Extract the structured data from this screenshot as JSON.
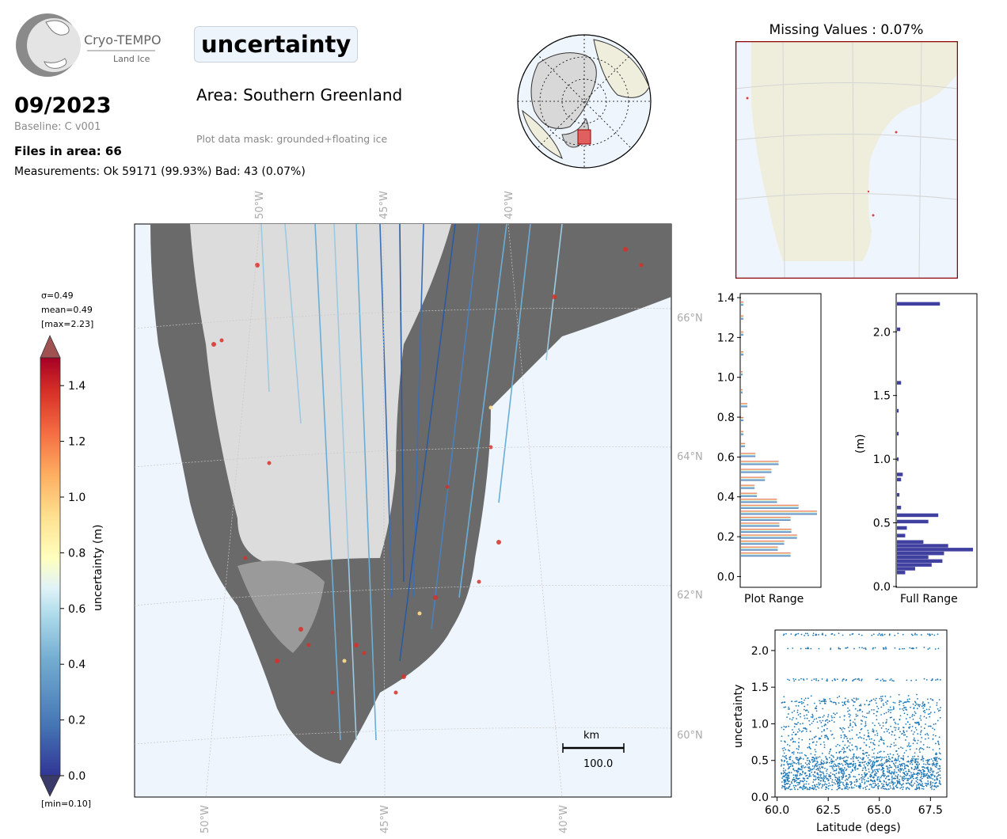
{
  "header": {
    "title": "uncertainty",
    "date": "09/2023",
    "baseline": "Baseline: C v001",
    "files": "Files in area: 66",
    "measurements": "Measurements: Ok 59171 (99.93%) Bad: 43 (0.07%)",
    "area": "Area: Southern Greenland",
    "mask": "Plot data mask: grounded+floating ice"
  },
  "logo": {
    "name": "Cryo-TEMPO",
    "sub": "Land Ice"
  },
  "inset": {
    "missing_title": "Missing Values : 0.07%"
  },
  "map": {
    "lon_labels": [
      "50°W",
      "45°W",
      "40°W"
    ],
    "lat_labels": [
      "66°N",
      "64°N",
      "62°N",
      "60°N"
    ],
    "scalebar_unit": "km",
    "scalebar_value": "100.0"
  },
  "colorbar": {
    "label": "uncertainty (m)",
    "stats": [
      "σ=0.49",
      "mean=0.49",
      "[max=2.23]"
    ],
    "min_label": "[min=0.10]",
    "ticks": [
      "0.0",
      "0.2",
      "0.4",
      "0.6",
      "0.8",
      "1.0",
      "1.2",
      "1.4"
    ]
  },
  "colors": {
    "ice_dark": "#4a4a4a",
    "ocean": "#eef5fd",
    "land": "#efeedc",
    "hist_full": "#4040a0",
    "scatter": "#1f77b4",
    "inset_border": "#8b0000"
  },
  "chart_data": [
    {
      "type": "bar",
      "orientation": "horizontal",
      "xlabel": "Plot Range",
      "ylim": [
        -0.05,
        1.42
      ],
      "yticks": [
        "0.0",
        "0.2",
        "0.4",
        "0.6",
        "0.8",
        "1.0",
        "1.2",
        "1.4"
      ],
      "bins": [
        {
          "y": 0.11,
          "c": 0.62
        },
        {
          "y": 0.14,
          "c": 0.46
        },
        {
          "y": 0.17,
          "c": 0.54
        },
        {
          "y": 0.2,
          "c": 0.7
        },
        {
          "y": 0.23,
          "c": 0.63
        },
        {
          "y": 0.26,
          "c": 0.48
        },
        {
          "y": 0.29,
          "c": 0.62
        },
        {
          "y": 0.32,
          "c": 0.95
        },
        {
          "y": 0.35,
          "c": 0.72
        },
        {
          "y": 0.38,
          "c": 0.45
        },
        {
          "y": 0.41,
          "c": 0.2
        },
        {
          "y": 0.45,
          "c": 0.17
        },
        {
          "y": 0.49,
          "c": 0.3
        },
        {
          "y": 0.53,
          "c": 0.38
        },
        {
          "y": 0.57,
          "c": 0.47
        },
        {
          "y": 0.61,
          "c": 0.18
        },
        {
          "y": 0.66,
          "c": 0.05
        },
        {
          "y": 0.72,
          "c": 0.03
        },
        {
          "y": 0.79,
          "c": 0.03
        },
        {
          "y": 0.86,
          "c": 0.08
        },
        {
          "y": 0.93,
          "c": 0.02
        },
        {
          "y": 1.02,
          "c": 0.02
        },
        {
          "y": 1.12,
          "c": 0.03
        },
        {
          "y": 1.22,
          "c": 0.03
        },
        {
          "y": 1.3,
          "c": 0.03
        },
        {
          "y": 1.37,
          "c": 0.03
        }
      ]
    },
    {
      "type": "bar",
      "orientation": "horizontal",
      "xlabel": "Full Range",
      "ylabel": "(m)",
      "ylim": [
        0.0,
        2.3
      ],
      "yticks": [
        "0.0",
        "0.5",
        "1.0",
        "1.5",
        "2.0"
      ],
      "bins": [
        {
          "y": 0.11,
          "c": 0.1
        },
        {
          "y": 0.14,
          "c": 0.22
        },
        {
          "y": 0.17,
          "c": 0.42
        },
        {
          "y": 0.2,
          "c": 0.55
        },
        {
          "y": 0.23,
          "c": 0.38
        },
        {
          "y": 0.26,
          "c": 0.57
        },
        {
          "y": 0.29,
          "c": 0.92
        },
        {
          "y": 0.32,
          "c": 0.62
        },
        {
          "y": 0.35,
          "c": 0.32
        },
        {
          "y": 0.4,
          "c": 0.1
        },
        {
          "y": 0.46,
          "c": 0.12
        },
        {
          "y": 0.51,
          "c": 0.38
        },
        {
          "y": 0.56,
          "c": 0.5
        },
        {
          "y": 0.62,
          "c": 0.05
        },
        {
          "y": 0.72,
          "c": 0.03
        },
        {
          "y": 0.84,
          "c": 0.05
        },
        {
          "y": 0.88,
          "c": 0.07
        },
        {
          "y": 1.0,
          "c": 0.02
        },
        {
          "y": 1.2,
          "c": 0.02
        },
        {
          "y": 1.38,
          "c": 0.02
        },
        {
          "y": 1.6,
          "c": 0.05
        },
        {
          "y": 2.02,
          "c": 0.04
        },
        {
          "y": 2.22,
          "c": 0.52
        }
      ]
    },
    {
      "type": "scatter",
      "xlabel": "Latitude (degs)",
      "ylabel": "uncertainty",
      "xlim": [
        59.9,
        68.3
      ],
      "ylim": [
        0.0,
        2.28
      ],
      "xticks": [
        "60.0",
        "62.5",
        "65.0",
        "67.5"
      ],
      "yticks": [
        "0.0",
        "0.5",
        "1.0",
        "1.5",
        "2.0"
      ],
      "lat_range": [
        60.2,
        68.0
      ],
      "bands": [
        2.22,
        2.03,
        1.6
      ]
    }
  ]
}
